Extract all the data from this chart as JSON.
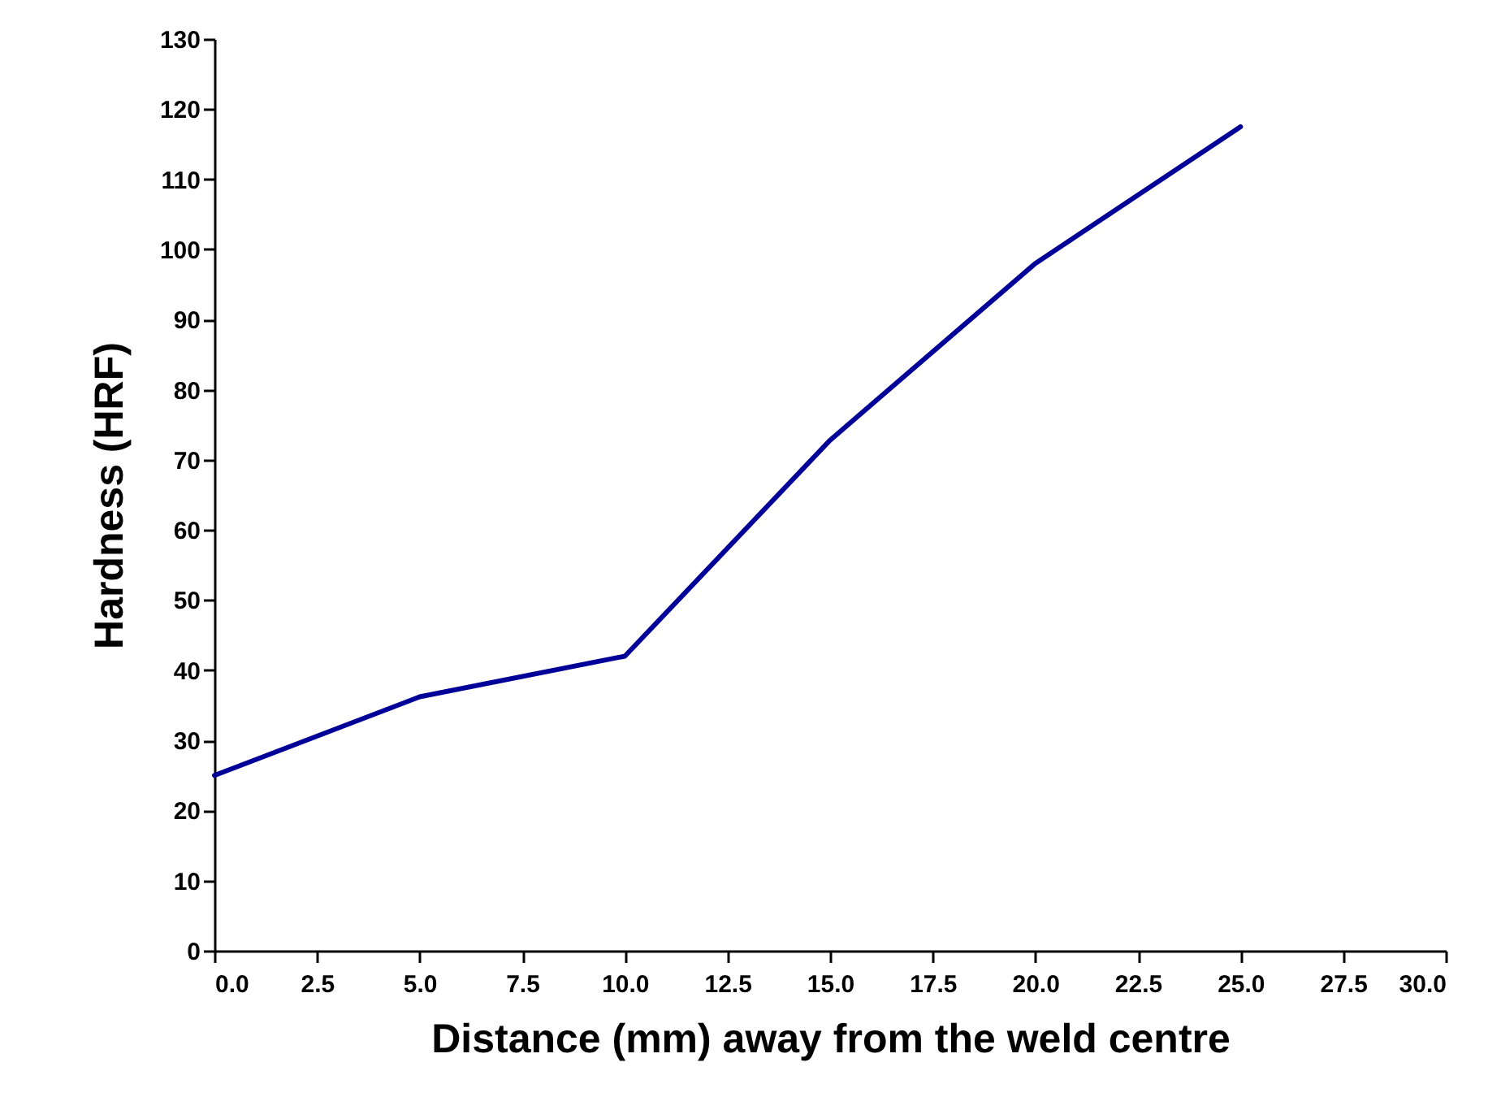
{
  "chart_data": {
    "type": "line",
    "xlabel": "Distance (mm) away from the weld centre",
    "ylabel": "Hardness (HRF)",
    "x": [
      0,
      5,
      10,
      15,
      20,
      25
    ],
    "series": [
      {
        "color": "#000099",
        "values": [
          25.0,
          36.2,
          42.0,
          72.8,
          98.0,
          117.5
        ]
      }
    ],
    "xlim": [
      0,
      30
    ],
    "xticks": [
      {
        "value": 0,
        "label": "0.0"
      },
      {
        "value": 2.5,
        "label": "2.5"
      },
      {
        "value": 5,
        "label": "5.0"
      },
      {
        "value": 7.5,
        "label": "7.5"
      },
      {
        "value": 10,
        "label": "10.0"
      },
      {
        "value": 12.5,
        "label": "12.5"
      },
      {
        "value": 15,
        "label": "15.0"
      },
      {
        "value": 17.5,
        "label": "17.5"
      },
      {
        "value": 20,
        "label": "20.0"
      },
      {
        "value": 22.5,
        "label": "22.5"
      },
      {
        "value": 25,
        "label": "25.0"
      },
      {
        "value": 27.5,
        "label": "27.5"
      },
      {
        "value": 30,
        "label": "30.0"
      }
    ],
    "ylim": [
      0,
      130
    ],
    "yticks": [
      0,
      10,
      20,
      30,
      40,
      50,
      60,
      70,
      80,
      90,
      100,
      110,
      120,
      130
    ],
    "grid": false,
    "marker": "none",
    "line_style": "solid"
  }
}
